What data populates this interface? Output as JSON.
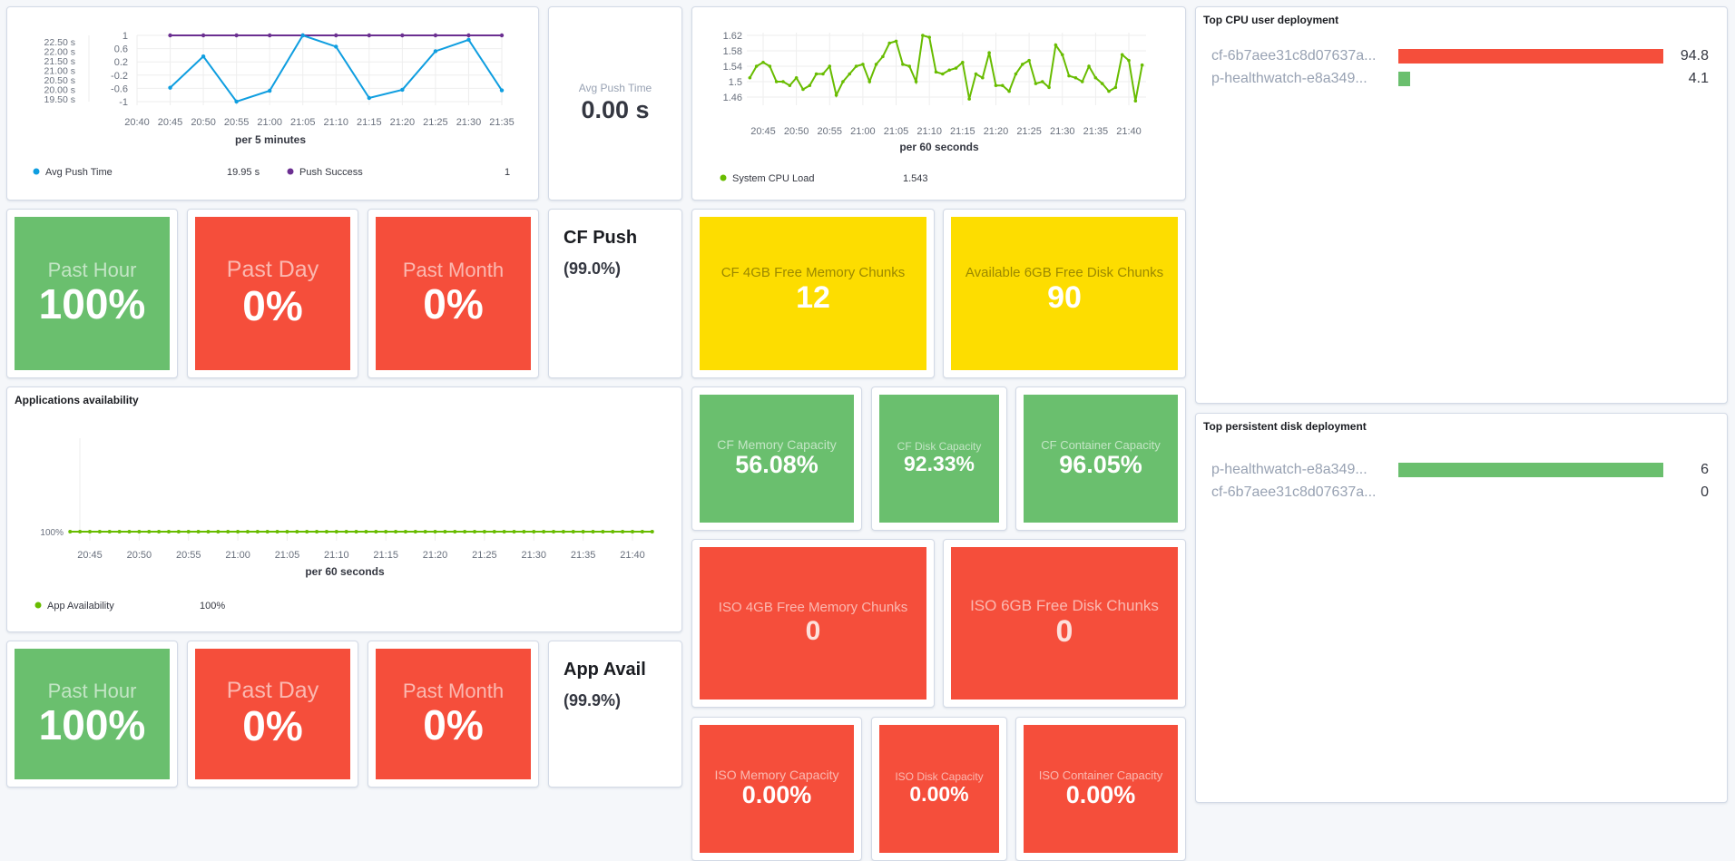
{
  "push_chart": {
    "chart_data": {
      "type": "line",
      "xlabel": "per 5 minutes",
      "x": [
        "20:45",
        "20:50",
        "20:55",
        "21:00",
        "21:05",
        "21:10",
        "21:15",
        "21:20",
        "21:25",
        "21:30",
        "21:35"
      ],
      "x_ticks": [
        "20:40",
        "20:45",
        "20:50",
        "20:55",
        "21:00",
        "21:05",
        "21:10",
        "21:15",
        "21:20",
        "21:25",
        "21:30",
        "21:35"
      ],
      "y_left_ticks": [
        "22.50 s",
        "22.00 s",
        "21.50 s",
        "21.00 s",
        "20.50 s",
        "20.00 s",
        "19.50 s"
      ],
      "y_right_ticks": [
        "1",
        "0.6",
        "0.2",
        "-0.2",
        "-0.6",
        "-1"
      ],
      "ylim_left": [
        19.36,
        22.83
      ],
      "ylim_right": [
        -1,
        1
      ],
      "series": [
        {
          "name": "Avg Push Time",
          "axis": "left",
          "color": "#0f9ee0",
          "values": [
            20.09,
            21.73,
            19.36,
            19.93,
            22.83,
            22.24,
            19.55,
            19.98,
            22.0,
            22.6,
            19.95
          ]
        },
        {
          "name": "Push Success",
          "axis": "right",
          "color": "#6b2f91",
          "values": [
            1,
            1,
            1,
            1,
            1,
            1,
            1,
            1,
            1,
            1,
            1
          ]
        }
      ]
    },
    "legend": [
      {
        "label": "Avg Push Time",
        "value": "19.95 s",
        "color": "#0f9ee0"
      },
      {
        "label": "Push Success",
        "value": "1",
        "color": "#6b2f91"
      }
    ]
  },
  "avg_push": {
    "label": "Avg Push Time",
    "value": "0.00 s"
  },
  "cpu_chart": {
    "chart_data": {
      "type": "line",
      "xlabel": "per 60 seconds",
      "x_start": "20:43",
      "x_step_minutes": 1,
      "x_ticks": [
        "20:45",
        "20:50",
        "20:55",
        "21:00",
        "21:05",
        "21:10",
        "21:15",
        "21:20",
        "21:25",
        "21:30",
        "21:35",
        "21:40"
      ],
      "y_ticks": [
        "1.62",
        "1.58",
        "1.54",
        "1.5",
        "1.46"
      ],
      "ylim": [
        1.45,
        1.625
      ],
      "series": [
        {
          "name": "System CPU Load",
          "color": "#54b399",
          "values": [
            1.51,
            1.54,
            1.55,
            1.54,
            1.5,
            1.5,
            1.49,
            1.51,
            1.48,
            1.49,
            1.52,
            1.52,
            1.54,
            1.465,
            1.5,
            1.52,
            1.54,
            1.545,
            1.5,
            1.545,
            1.565,
            1.6,
            1.605,
            1.545,
            1.54,
            1.5,
            1.62,
            1.615,
            1.525,
            1.52,
            1.53,
            1.535,
            1.55,
            1.455,
            1.52,
            1.51,
            1.575,
            1.49,
            1.49,
            1.475,
            1.52,
            1.545,
            1.555,
            1.495,
            1.5,
            1.485,
            1.595,
            1.57,
            1.515,
            1.51,
            1.5,
            1.54,
            1.51,
            1.495,
            1.475,
            1.485,
            1.57,
            1.555,
            1.45,
            1.543
          ]
        }
      ]
    },
    "legend": {
      "label": "System CPU Load",
      "value": "1.543",
      "color": "#68bc00"
    }
  },
  "cf_push": {
    "tiles": [
      {
        "label": "Past Hour",
        "value": "100%",
        "status": "green"
      },
      {
        "label": "Past Day",
        "value": "0%",
        "status": "red"
      },
      {
        "label": "Past Month",
        "value": "0%",
        "status": "red"
      }
    ],
    "title": "CF Push",
    "subtitle": "(99.0%)"
  },
  "chunks": [
    {
      "label": "CF 4GB Free Memory Chunks",
      "value": "12"
    },
    {
      "label": "Available 6GB Free Disk Chunks",
      "value": "90"
    }
  ],
  "cf_capacity": [
    {
      "label": "CF Memory Capacity",
      "value": "56.08%"
    },
    {
      "label": "CF Disk Capacity",
      "value": "92.33%"
    },
    {
      "label": "CF Container Capacity",
      "value": "96.05%"
    }
  ],
  "iso_chunks": [
    {
      "label": "ISO 4GB Free Memory Chunks",
      "value": "0"
    },
    {
      "label": "ISO 6GB Free Disk Chunks",
      "value": "0"
    }
  ],
  "iso_capacity": [
    {
      "label": "ISO Memory Capacity",
      "value": "0.00%"
    },
    {
      "label": "ISO Disk Capacity",
      "value": "0.00%"
    },
    {
      "label": "ISO Container Capacity",
      "value": "0.00%"
    }
  ],
  "app_chart": {
    "title": "Applications availability",
    "chart_data": {
      "type": "line",
      "xlabel": "per 60 seconds",
      "x_start": "20:43",
      "x_step_minutes": 1,
      "x_ticks": [
        "20:45",
        "20:50",
        "20:55",
        "21:00",
        "21:05",
        "21:10",
        "21:15",
        "21:20",
        "21:25",
        "21:30",
        "21:35",
        "21:40"
      ],
      "y_ticks": [
        "100%"
      ],
      "series": [
        {
          "name": "App Availability",
          "color": "#68bc00",
          "values": [
            100,
            100,
            100,
            100,
            100,
            100,
            100,
            100,
            100,
            100,
            100,
            100,
            100,
            100,
            100,
            100,
            100,
            100,
            100,
            100,
            100,
            100,
            100,
            100,
            100,
            100,
            100,
            100,
            100,
            100,
            100,
            100,
            100,
            100,
            100,
            100,
            100,
            100,
            100,
            100,
            100,
            100,
            100,
            100,
            100,
            100,
            100,
            100,
            100,
            100,
            100,
            100,
            100,
            100,
            100,
            100,
            100,
            100,
            100,
            100
          ]
        }
      ]
    },
    "legend": {
      "label": "App Availability",
      "value": "100%",
      "color": "#68bc00"
    }
  },
  "app_avail": {
    "tiles": [
      {
        "label": "Past Hour",
        "value": "100%",
        "status": "green"
      },
      {
        "label": "Past Day",
        "value": "0%",
        "status": "red"
      },
      {
        "label": "Past Month",
        "value": "0%",
        "status": "red"
      }
    ],
    "title": "App Avail",
    "subtitle": "(99.9%)"
  },
  "top_cpu": {
    "title": "Top CPU user deployment",
    "max": 94.8,
    "rows": [
      {
        "name": "cf-6b7aee31c8d07637a...",
        "value": "94.8",
        "num": 94.8,
        "color": "#f54e3b"
      },
      {
        "name": "p-healthwatch-e8a349...",
        "value": "4.1",
        "num": 4.1,
        "color": "#6abf6e"
      }
    ]
  },
  "top_disk": {
    "title": "Top persistent disk deployment",
    "max": 6,
    "rows": [
      {
        "name": "p-healthwatch-e8a349...",
        "value": "6",
        "num": 6,
        "color": "#6abf6e"
      },
      {
        "name": "cf-6b7aee31c8d07637a...",
        "value": "0",
        "num": 0,
        "color": "#f54e3b"
      }
    ]
  }
}
